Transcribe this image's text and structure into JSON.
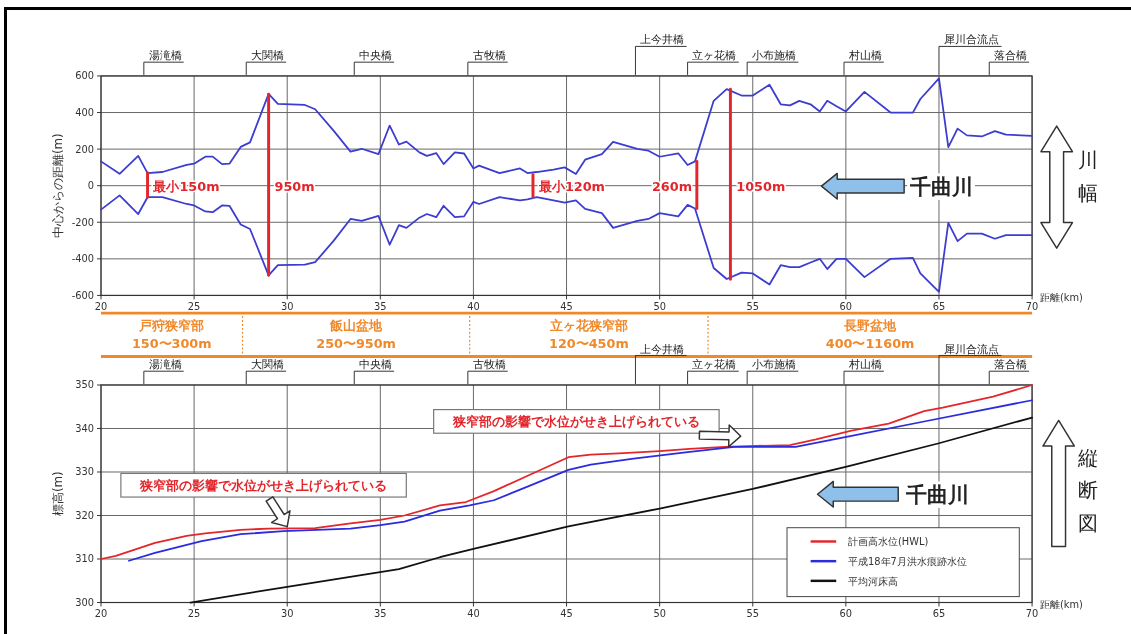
{
  "chart_data": [
    {
      "type": "line",
      "xlabel": "距離(km)",
      "ylabel": "中心からの距離(m)",
      "xlim": [
        20,
        70
      ],
      "ylim": [
        -600,
        600
      ],
      "xticks": [
        20,
        25,
        30,
        35,
        40,
        45,
        50,
        55,
        60,
        65,
        70
      ],
      "yticks": [
        -600,
        -400,
        -200,
        0,
        200,
        400,
        600
      ],
      "grid": true,
      "series": [
        {
          "color": "#3c3cd0",
          "x": [
            20,
            21,
            22,
            22.5,
            23.3,
            24.6,
            25,
            25.6,
            26,
            26.5,
            26.9,
            27.5,
            28,
            29,
            29.5,
            30.95,
            31.5,
            32.5,
            33.4,
            34,
            34.9,
            35.5,
            36,
            36.4,
            37.1,
            37.5,
            38,
            38.4,
            39,
            39.5,
            40,
            40.3,
            41.4,
            42.5,
            42.9,
            43.4,
            44.3,
            44.9,
            45.5,
            46,
            46.9,
            47.5,
            48.8,
            49.4,
            50,
            51,
            51.5,
            51.9,
            52.9,
            53.6,
            54.4,
            55,
            55.9,
            56.5,
            57,
            57.5,
            58.1,
            58.6,
            59,
            59.5,
            60,
            61,
            62.4,
            63.6,
            64,
            65,
            65.5,
            66,
            66.5,
            67.3,
            68,
            68.6,
            70
          ],
          "values": [
            133,
            65,
            163,
            69,
            75,
            114,
            120,
            159,
            159,
            118,
            120,
            212,
            237,
            502,
            447,
            441,
            418,
            300,
            186,
            202,
            172,
            329,
            225,
            241,
            182,
            163,
            178,
            118,
            182,
            176,
            94,
            110,
            69,
            94,
            69,
            75,
            88,
            100,
            64,
            142,
            172,
            240,
            201,
            191,
            158,
            177,
            113,
            133,
            464,
            528,
            493,
            493,
            552,
            445,
            439,
            464,
            445,
            406,
            464,
            435,
            406,
            513,
            400,
            400,
            474,
            587,
            211,
            312,
            275,
            269,
            298,
            279,
            273
          ]
        },
        {
          "color": "#3c3cd0",
          "x": [
            20,
            21,
            22,
            22.5,
            23.3,
            24.6,
            25,
            25.6,
            26,
            26.5,
            26.9,
            27.5,
            28,
            29,
            29.5,
            30.95,
            31.5,
            32.5,
            33.4,
            34,
            34.9,
            35.5,
            36,
            36.4,
            37.1,
            37.5,
            38,
            38.4,
            39,
            39.5,
            40,
            40.3,
            41.4,
            42.5,
            42.9,
            43.4,
            44.3,
            44.9,
            45.5,
            46,
            46.9,
            47.5,
            48.8,
            49.4,
            50,
            51,
            51.5,
            51.9,
            52.9,
            53.6,
            54.4,
            55,
            55.9,
            56.5,
            57,
            57.5,
            58.1,
            58.6,
            59,
            59.5,
            60,
            61,
            62.4,
            63.6,
            64,
            65,
            65.5,
            66,
            66.5,
            67.3,
            68,
            68.6,
            70
          ],
          "values": [
            -131,
            -53,
            -155,
            -63,
            -63,
            -100,
            -108,
            -141,
            -145,
            -108,
            -110,
            -212,
            -237,
            -490,
            -435,
            -431,
            -418,
            -300,
            -182,
            -192,
            -165,
            -323,
            -216,
            -231,
            -175,
            -155,
            -172,
            -110,
            -172,
            -168,
            -88,
            -100,
            -63,
            -80,
            -75,
            -63,
            -80,
            -92,
            -80,
            -127,
            -150,
            -231,
            -192,
            -182,
            -150,
            -168,
            -105,
            -125,
            -450,
            -510,
            -475,
            -480,
            -540,
            -435,
            -445,
            -445,
            -420,
            -400,
            -456,
            -400,
            -400,
            -500,
            -400,
            -395,
            -480,
            -580,
            -203,
            -303,
            -262,
            -262,
            -290,
            -270,
            -270
          ]
        },
        {
          "color": "#e3262b",
          "x": [
            22.5,
            22.5
          ],
          "values": [
            -63,
            69
          ]
        },
        {
          "color": "#e3262b",
          "x": [
            29,
            29
          ],
          "values": [
            -490,
            500
          ]
        },
        {
          "color": "#e3262b",
          "x": [
            43.2,
            43.2
          ],
          "values": [
            -60,
            60
          ]
        },
        {
          "color": "#e3262b",
          "x": [
            52,
            52
          ],
          "values": [
            -125,
            133
          ]
        },
        {
          "color": "#e3262b",
          "x": [
            53.8,
            53.8
          ],
          "values": [
            -511,
            528
          ]
        }
      ],
      "annotations": [
        {
          "text": "最小150m",
          "x": 22.5,
          "y": 0
        },
        {
          "text": "950m",
          "x": 29,
          "y": 0
        },
        {
          "text": "最小120m",
          "x": 43.2,
          "y": 0
        },
        {
          "text": "260m",
          "x": 52,
          "y": 0
        },
        {
          "text": "1050m",
          "x": 53.8,
          "y": 0
        },
        "千曲川",
        "川幅",
        "湯滝橋",
        "大関橋",
        "中央橋",
        "古牧橋",
        "上今井橋",
        "立ヶ花橋",
        "小布施橋",
        "村山橋",
        "犀川合流点",
        "落合橋"
      ]
    },
    {
      "type": "other",
      "annotations": [
        "戸狩狭窄部\n150〜300m",
        "飯山盆地\n250〜950m",
        "立ヶ花狭窄部\n120〜450m",
        "長野盆地\n400〜1160m"
      ]
    },
    {
      "type": "line",
      "xlabel": "距離(km)",
      "ylabel": "標高(m)",
      "xlim": [
        20,
        70
      ],
      "ylim": [
        300,
        350
      ],
      "xticks": [
        20,
        25,
        30,
        35,
        40,
        45,
        50,
        55,
        60,
        65,
        70
      ],
      "yticks": [
        300,
        310,
        320,
        330,
        340,
        350
      ],
      "grid": true,
      "legend": "bottom right",
      "series": [
        {
          "name": "計画高水位(HWL)",
          "color": "#e3262b",
          "x": [
            20,
            20.8,
            22.9,
            24.6,
            25.6,
            27.5,
            29,
            31.5,
            33.4,
            35,
            36.3,
            38.2,
            39.6,
            41.1,
            43,
            45.1,
            46.3,
            47.8,
            50,
            51.6,
            53.5,
            57,
            58.4,
            60.3,
            62.3,
            64.2,
            65.2,
            67.9,
            70
          ],
          "values": [
            310,
            310.7,
            313.7,
            315.3,
            315.9,
            316.7,
            317,
            317.1,
            318.2,
            319,
            320,
            322.3,
            323.1,
            325.6,
            329.3,
            333.4,
            334,
            334.3,
            334.8,
            335.3,
            335.8,
            336.2,
            337.5,
            339.5,
            341.1,
            344,
            344.8,
            347.3,
            350
          ]
        },
        {
          "name": "平成18年7月洪水痕跡水位",
          "color": "#2b2be0",
          "x": [
            21.5,
            22.9,
            25.4,
            27.5,
            29.8,
            33.4,
            35,
            36.3,
            38.2,
            39.8,
            41.1,
            43,
            45.1,
            46.3,
            48.6,
            51.5,
            54,
            57.3,
            60.3,
            64.2,
            70
          ],
          "values": [
            309.6,
            311.4,
            314.1,
            315.7,
            316.4,
            317,
            317.8,
            318.6,
            321.1,
            322.3,
            323.5,
            326.8,
            330.5,
            331.7,
            333.1,
            334.6,
            335.8,
            335.8,
            338.3,
            341.6,
            346.5
          ]
        },
        {
          "name": "平均河床高",
          "color": "#111111",
          "x": [
            24.8,
            30,
            36,
            38.2,
            40,
            45.1,
            50,
            55,
            60.1,
            65,
            70
          ],
          "values": [
            300,
            303.6,
            307.7,
            310.4,
            312.3,
            317.5,
            321.6,
            326.1,
            331.3,
            336.6,
            342.5
          ]
        }
      ],
      "annotations": [
        {
          "text": "狭窄部の影響で水位がせき上げられている",
          "x": 30,
          "y": 317
        },
        "狭窄部の影響で水位がせき上げられている",
        "千曲川",
        "縦断図",
        "湯滝橋",
        "大関橋",
        "中央橋",
        "古牧橋",
        "上今井橋",
        "立ヶ花橋",
        "小布施橋",
        "村山橋",
        "犀川合流点",
        "落合橋"
      ]
    }
  ]
}
